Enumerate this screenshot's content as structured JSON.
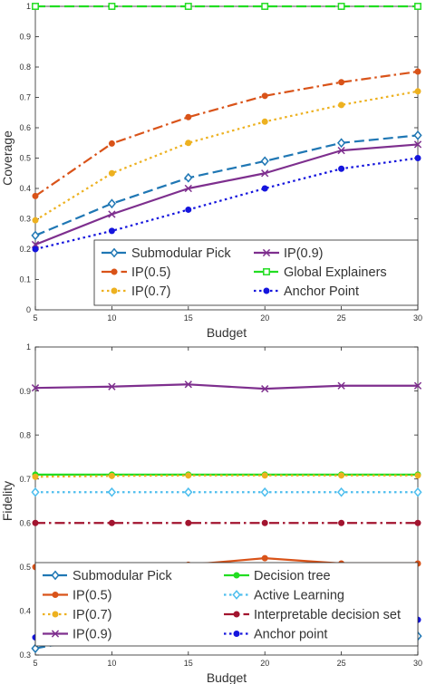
{
  "chart_data": [
    {
      "type": "line",
      "title": "",
      "xlabel": "Budget",
      "ylabel": "Coverage",
      "x": [
        5,
        10,
        15,
        20,
        25,
        30
      ],
      "xlim": [
        5,
        30
      ],
      "ylim": [
        0,
        1
      ],
      "xticks": [
        "5",
        "10",
        "15",
        "20",
        "25",
        "30"
      ],
      "yticks": [
        "0",
        "0.1",
        "0.2",
        "0.3",
        "0.4",
        "0.5",
        "0.6",
        "0.7",
        "0.8",
        "0.9",
        "1"
      ],
      "grid": false,
      "legend_placement": "lower-center",
      "legend_columns": 2,
      "series": [
        {
          "name": "Submodular Pick",
          "values": [
            0.245,
            0.35,
            0.435,
            0.49,
            0.55,
            0.575
          ],
          "color": "#1f77b4",
          "dash": "dash",
          "marker": "diamond"
        },
        {
          "name": "IP(0.9)",
          "values": [
            0.215,
            0.315,
            0.4,
            0.45,
            0.525,
            0.545
          ],
          "color": "#7e2f8e",
          "dash": "solid",
          "marker": "x"
        },
        {
          "name": "IP(0.5)",
          "values": [
            0.375,
            0.548,
            0.635,
            0.705,
            0.75,
            0.785
          ],
          "color": "#d95319",
          "dash": "dashdot",
          "marker": "circle"
        },
        {
          "name": "Global Explainers",
          "values": [
            1,
            1,
            1,
            1,
            1,
            1
          ],
          "color": "#22dd22",
          "dash": "dash",
          "marker": "square"
        },
        {
          "name": "IP(0.7)",
          "values": [
            0.295,
            0.45,
            0.55,
            0.62,
            0.675,
            0.72
          ],
          "color": "#edb120",
          "dash": "dot",
          "marker": "circle"
        },
        {
          "name": "Anchor Point",
          "values": [
            0.2,
            0.26,
            0.33,
            0.4,
            0.465,
            0.5
          ],
          "color": "#1515dd",
          "dash": "dot",
          "marker": "circle"
        }
      ]
    },
    {
      "type": "line",
      "title": "",
      "xlabel": "Budget",
      "ylabel": "Fidelity",
      "x": [
        5,
        10,
        15,
        20,
        25,
        30
      ],
      "xlim": [
        5,
        30
      ],
      "ylim": [
        0.3,
        1
      ],
      "xticks": [
        "5",
        "10",
        "15",
        "20",
        "25",
        "30"
      ],
      "yticks": [
        "0.3",
        "0.4",
        "0.5",
        "0.6",
        "0.7",
        "0.8",
        "0.9",
        "1"
      ],
      "grid": false,
      "legend_placement": "bottom",
      "legend_columns": 2,
      "series": [
        {
          "name": "Submodular Pick",
          "values": [
            0.315,
            0.347,
            0.34,
            0.35,
            0.352,
            0.343
          ],
          "color": "#1f77b4",
          "dash": "dash",
          "marker": "diamond"
        },
        {
          "name": "Decision tree",
          "values": [
            0.71,
            0.71,
            0.71,
            0.71,
            0.71,
            0.71
          ],
          "color": "#22dd22",
          "dash": "solid",
          "marker": "circle"
        },
        {
          "name": "IP(0.5)",
          "values": [
            0.5,
            0.501,
            0.505,
            0.52,
            0.508,
            0.508
          ],
          "color": "#d95319",
          "dash": "solid",
          "marker": "circle"
        },
        {
          "name": "Active Learning",
          "values": [
            0.67,
            0.67,
            0.67,
            0.67,
            0.67,
            0.67
          ],
          "color": "#4dbeee",
          "dash": "dot",
          "marker": "diamond"
        },
        {
          "name": "IP(0.7)",
          "values": [
            0.705,
            0.707,
            0.708,
            0.708,
            0.708,
            0.708
          ],
          "color": "#edb120",
          "dash": "dot",
          "marker": "circle"
        },
        {
          "name": "Interpretable decision set",
          "values": [
            0.6,
            0.6,
            0.6,
            0.6,
            0.6,
            0.6
          ],
          "color": "#a2142f",
          "dash": "dashdot",
          "marker": "circle"
        },
        {
          "name": "IP(0.9)",
          "values": [
            0.907,
            0.91,
            0.915,
            0.905,
            0.912,
            0.912
          ],
          "color": "#7e2f8e",
          "dash": "solid",
          "marker": "x"
        },
        {
          "name": "Anchor point",
          "values": [
            0.34,
            0.36,
            0.36,
            0.38,
            0.38,
            0.38
          ],
          "color": "#1515dd",
          "dash": "dot",
          "marker": "circle"
        }
      ]
    }
  ]
}
